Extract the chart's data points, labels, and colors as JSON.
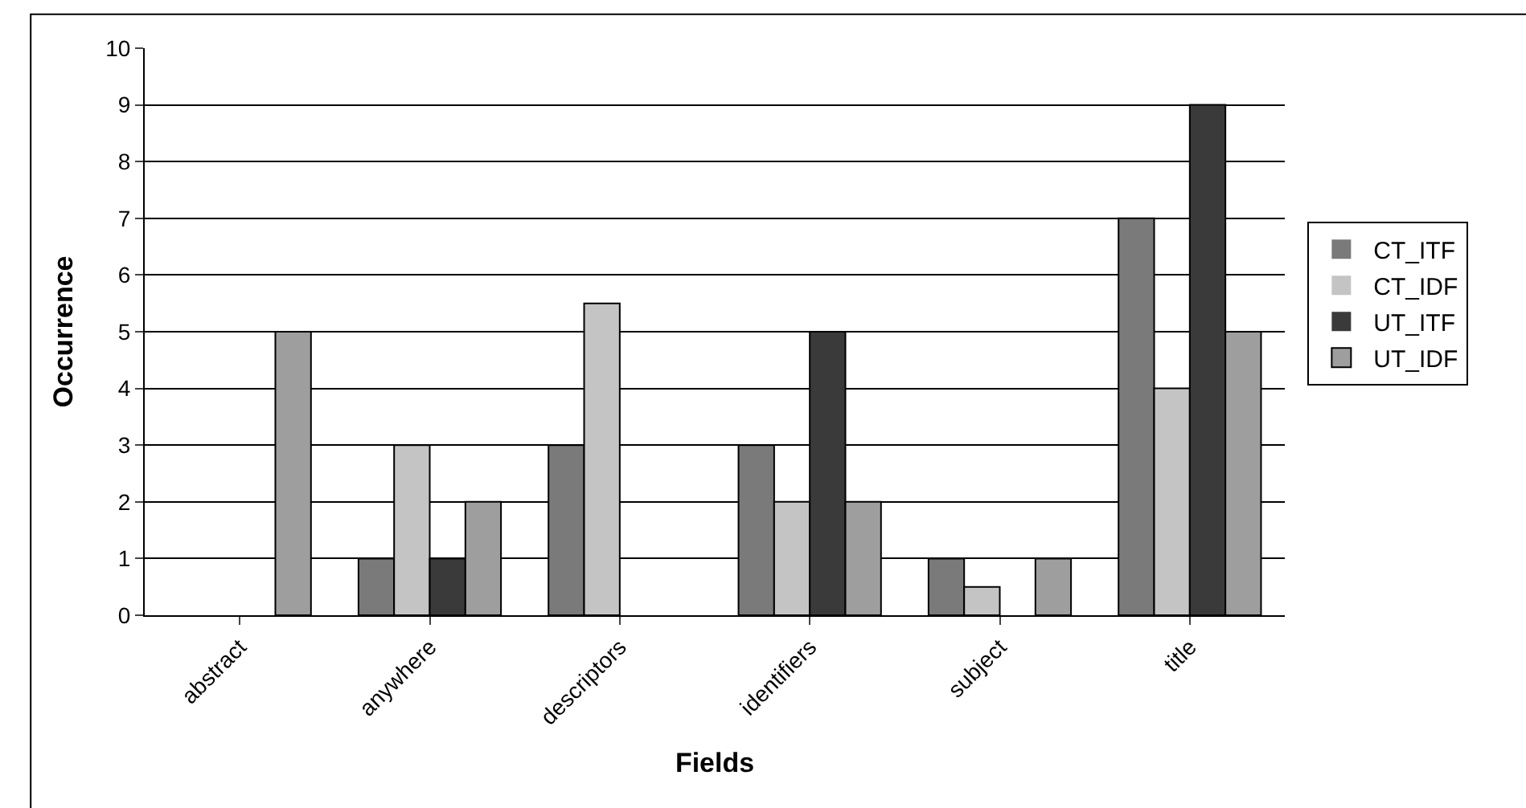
{
  "chart_data": {
    "type": "bar",
    "xlabel": "Fields",
    "ylabel": "Occurrence",
    "categories": [
      "abstract",
      "anywhere",
      "descriptors",
      "identifiers",
      "subject",
      "title"
    ],
    "series": [
      {
        "name": "CT_ITF",
        "color": "#7a7a7a",
        "values": [
          0,
          1,
          3,
          3,
          1,
          7
        ]
      },
      {
        "name": "CT_IDF",
        "color": "#c4c4c4",
        "values": [
          0,
          3,
          5.5,
          2,
          0.5,
          4
        ]
      },
      {
        "name": "UT_ITF",
        "color": "#3a3a3a",
        "values": [
          0,
          1,
          0,
          5,
          0,
          9
        ]
      },
      {
        "name": "UT_IDF",
        "color": "#9e9e9e",
        "values": [
          5,
          2,
          0,
          2,
          1,
          5
        ]
      }
    ],
    "ylim": [
      0,
      10
    ],
    "yticks": [
      0,
      1,
      2,
      3,
      4,
      5,
      6,
      7,
      8,
      9,
      10
    ],
    "grid": "y",
    "legend": "right"
  }
}
